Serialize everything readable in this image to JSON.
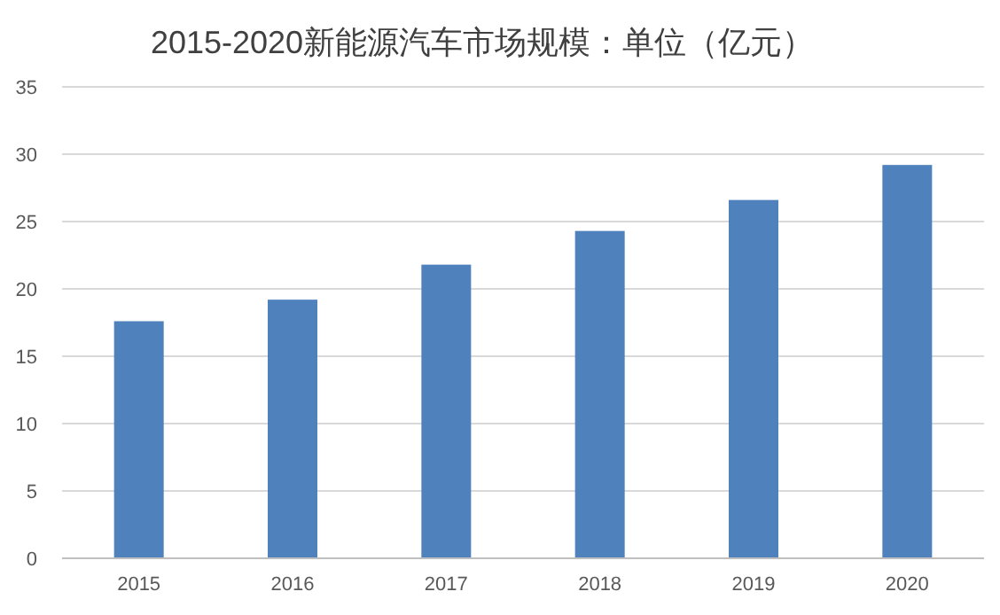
{
  "chart_data": {
    "type": "bar",
    "title": "2015-2020新能源汽车市场规模：单位（亿元）",
    "categories": [
      "2015",
      "2016",
      "2017",
      "2018",
      "2019",
      "2020"
    ],
    "values": [
      17.6,
      19.2,
      21.8,
      24.3,
      26.6,
      29.2
    ],
    "color": "#4f81bd",
    "ylim": [
      0,
      35
    ],
    "yticks": [
      0,
      5,
      10,
      15,
      20,
      25,
      30,
      35
    ],
    "grid": "y"
  }
}
